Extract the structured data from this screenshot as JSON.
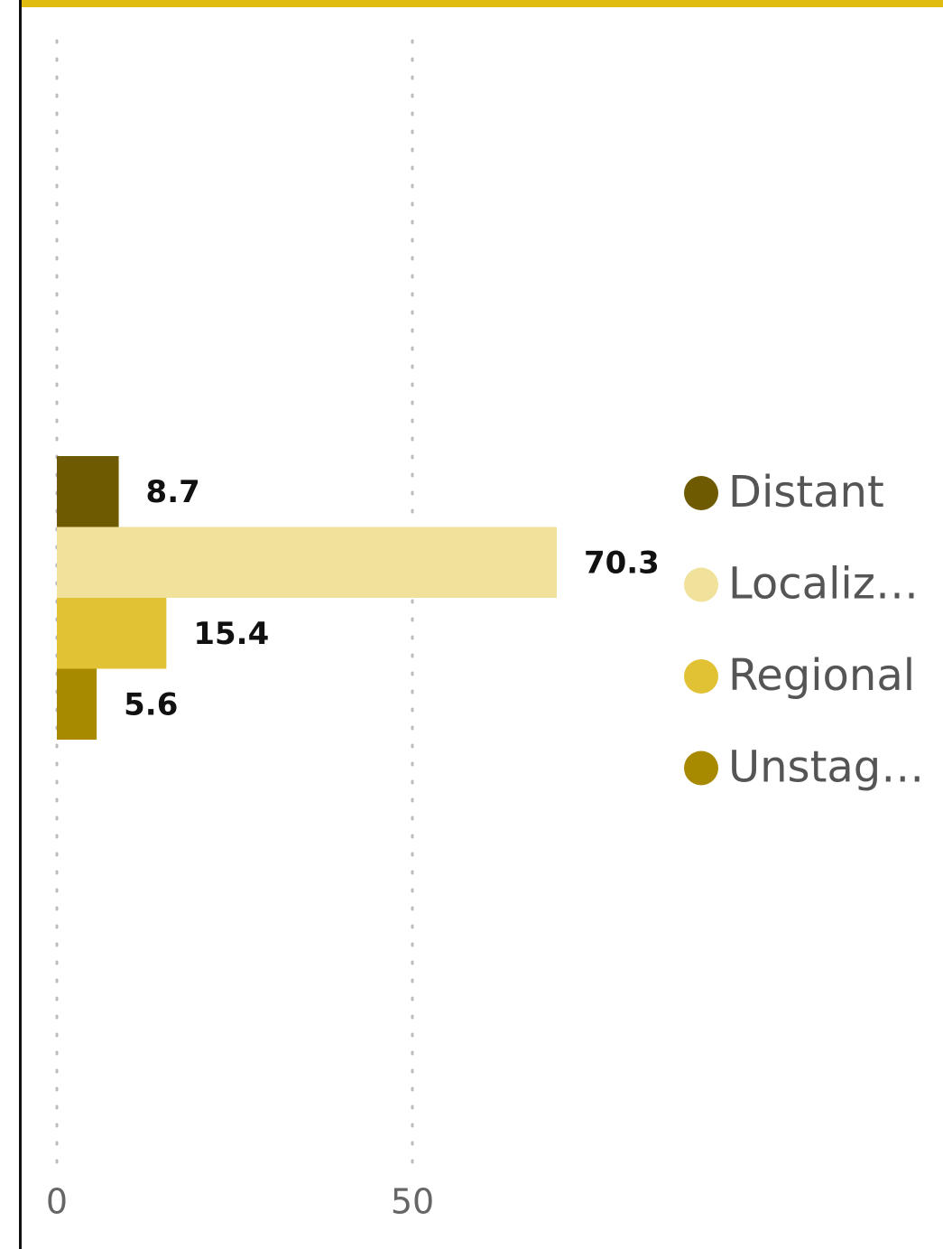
{
  "chart_data": {
    "type": "bar",
    "orientation": "horizontal",
    "categories": [
      null
    ],
    "series": [
      {
        "name": "Distant",
        "color": "#6e5a00",
        "values": [
          8.7
        ]
      },
      {
        "name": "Localiz…",
        "color": "#f0e29a",
        "values": [
          70.3
        ]
      },
      {
        "name": "Regional",
        "color": "#e0c234",
        "values": [
          15.4
        ]
      },
      {
        "name": "Unstag…",
        "color": "#a88a00",
        "values": [
          5.6
        ]
      }
    ],
    "xlim": [
      0,
      85
    ],
    "xticks": [
      0,
      50
    ],
    "grid": true,
    "legend": "right"
  }
}
